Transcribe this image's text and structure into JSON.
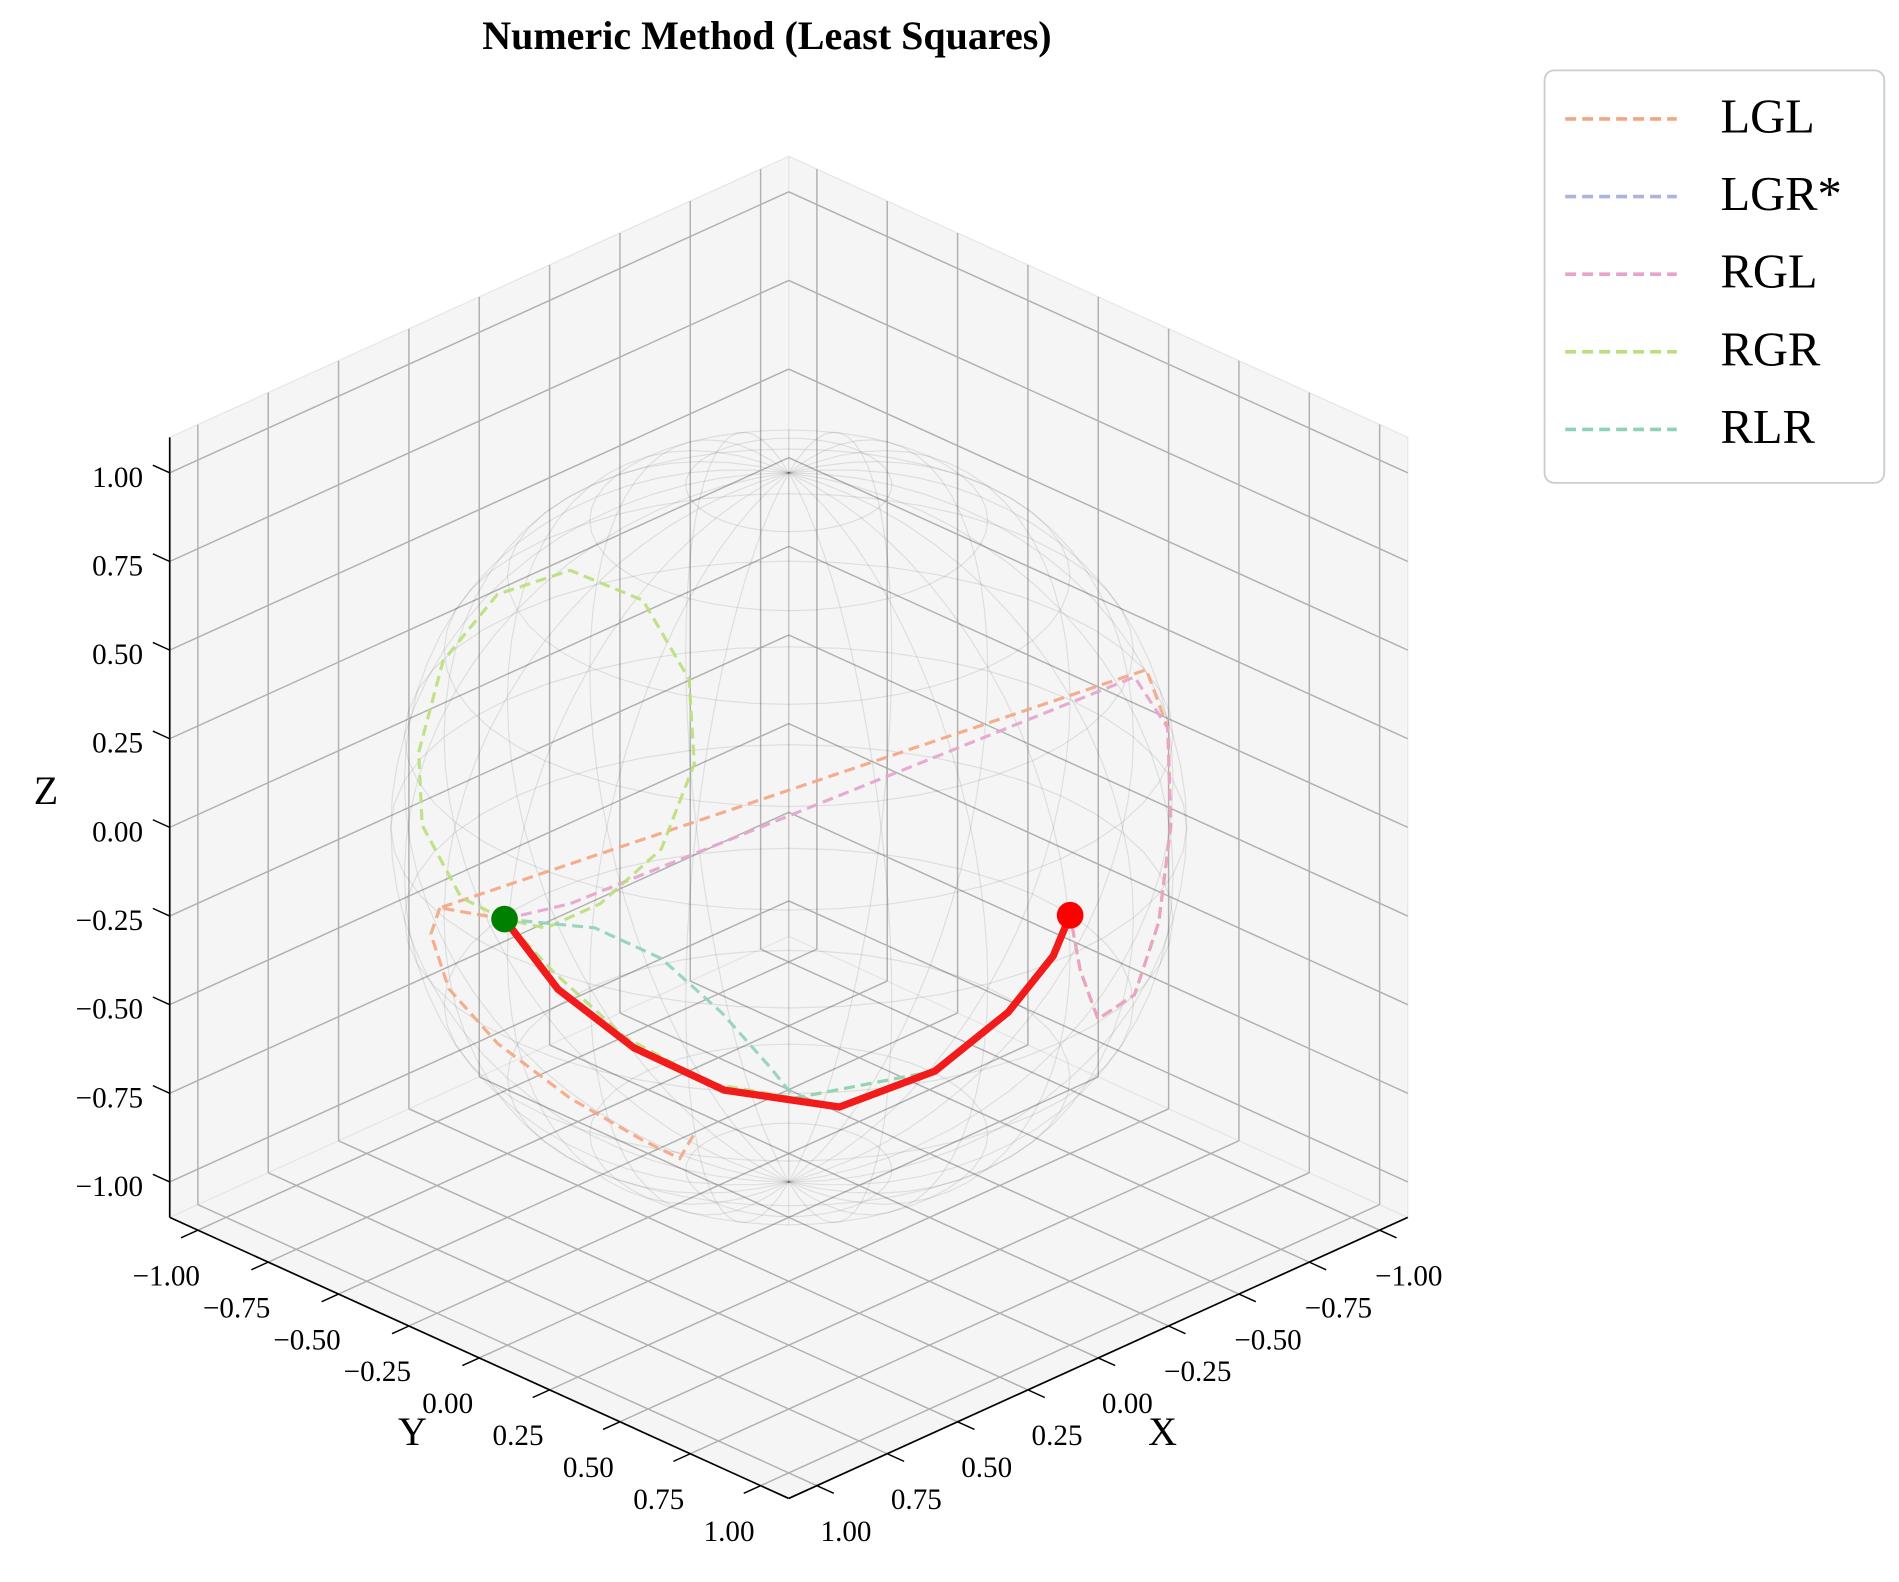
{
  "chart_data": {
    "type": "line3d",
    "title": "Numeric Method (Least Squares)",
    "xlabel": "X",
    "ylabel": "Y",
    "zlabel": "Z",
    "xlim": [
      -1.1,
      1.1
    ],
    "ylim": [
      -1.1,
      1.1
    ],
    "zlim": [
      -1.1,
      1.1
    ],
    "xticks": [
      {
        "value": -1,
        "label": "−1.00"
      },
      {
        "value": -0.75,
        "label": "−0.75"
      },
      {
        "value": -0.5,
        "label": "−0.50"
      },
      {
        "value": -0.25,
        "label": "−0.25"
      },
      {
        "value": 0,
        "label": "0.00"
      },
      {
        "value": 0.25,
        "label": "0.25"
      },
      {
        "value": 0.5,
        "label": "0.50"
      },
      {
        "value": 0.75,
        "label": "0.75"
      },
      {
        "value": 1,
        "label": "1.00"
      }
    ],
    "yticks": [
      {
        "value": -1,
        "label": "−1.00"
      },
      {
        "value": -0.75,
        "label": "−0.75"
      },
      {
        "value": -0.5,
        "label": "−0.50"
      },
      {
        "value": -0.25,
        "label": "−0.25"
      },
      {
        "value": 0,
        "label": "0.00"
      },
      {
        "value": 0.25,
        "label": "0.25"
      },
      {
        "value": 0.5,
        "label": "0.50"
      },
      {
        "value": 0.75,
        "label": "0.75"
      },
      {
        "value": 1,
        "label": "1.00"
      }
    ],
    "zticks": [
      {
        "value": -1,
        "label": "−1.00"
      },
      {
        "value": -0.75,
        "label": "−0.75"
      },
      {
        "value": -0.5,
        "label": "−0.50"
      },
      {
        "value": -0.25,
        "label": "−0.25"
      },
      {
        "value": 0,
        "label": "0.00"
      },
      {
        "value": 0.25,
        "label": "0.25"
      },
      {
        "value": 0.5,
        "label": "0.50"
      },
      {
        "value": 0.75,
        "label": "0.75"
      },
      {
        "value": 1,
        "label": "1.00"
      }
    ],
    "grid": true,
    "legend": "outside-upper-right",
    "sphere_radius": 1,
    "series": [
      {
        "name": "LGL",
        "color": "#f4a582",
        "x": [
          0.17,
          0.96,
          -0.881,
          -0.868,
          -0.857,
          -0.757,
          -0.644,
          -0.65,
          -0.767,
          -0.85,
          null,
          0.96,
          0.94,
          0.94,
          0.951,
          0.914,
          0.825,
          0.765,
          0.789
        ],
        "y": [
          -0.84,
          -0.28,
          0.39,
          0.479,
          0.501,
          0.558,
          0.585,
          0.449,
          0.269,
          0.15,
          null,
          -0.28,
          -0.332,
          -0.268,
          -0.084,
          0.137,
          0.307,
          0.378,
          0.452
        ],
        "z": [
          -0.5,
          0.018,
          0.268,
          0.14,
          -0.122,
          -0.339,
          -0.493,
          -0.613,
          -0.583,
          -0.5,
          null,
          0.018,
          -0.082,
          -0.213,
          -0.297,
          -0.385,
          -0.475,
          -0.522,
          -0.419
        ]
      },
      {
        "name": "LGR*",
        "color": "#a9b4e0",
        "x": [],
        "y": [],
        "z": []
      },
      {
        "name": "RGL",
        "color": "#e7a3cc",
        "x": [
          0.17,
          -0.062,
          -0.937,
          -0.868,
          -0.857,
          -0.757,
          -0.644,
          -0.65,
          -0.767,
          -0.85
        ],
        "y": [
          -0.84,
          -0.839,
          0.292,
          0.479,
          0.501,
          0.558,
          0.585,
          0.449,
          0.269,
          0.15
        ],
        "z": [
          -0.5,
          -0.54,
          0.192,
          0.14,
          -0.122,
          -0.339,
          -0.493,
          -0.613,
          -0.583,
          -0.5
        ]
      },
      {
        "name": "RGR",
        "color": "#bcde7c",
        "x": [
          0.17,
          0.298,
          0.404,
          0.398,
          0.313,
          0.11,
          -0.153,
          -0.388,
          -0.506,
          -0.487,
          -0.352,
          -0.146,
          0.04,
          0.17,
          0.083,
          -0.008,
          -0.12,
          -0.254,
          -0.5,
          -0.68,
          -0.8,
          -0.85
        ],
        "y": [
          -0.84,
          -0.866,
          -0.899,
          -0.917,
          -0.916,
          -0.926,
          -0.93,
          -0.906,
          -0.86,
          -0.823,
          -0.805,
          -0.815,
          -0.823,
          -0.84,
          -0.758,
          -0.591,
          -0.4,
          -0.233,
          0.02,
          0.1,
          0.14,
          0.15
        ],
        "z": [
          -0.5,
          -0.403,
          -0.172,
          0.025,
          0.252,
          0.363,
          0.335,
          0.174,
          -0.075,
          -0.293,
          -0.478,
          -0.561,
          -0.566,
          -0.5,
          -0.647,
          -0.807,
          -0.909,
          -0.939,
          -0.86,
          -0.73,
          -0.6,
          -0.5
        ]
      },
      {
        "name": "RLR",
        "color": "#8fd3b6",
        "x": [
          0.17,
          -0.1,
          -0.228,
          -0.279,
          -0.275,
          -0.254,
          -0.5,
          -0.68,
          -0.8,
          -0.85
        ],
        "y": [
          -0.84,
          -0.79,
          -0.681,
          -0.516,
          -0.34,
          -0.233,
          0.02,
          0.1,
          0.14,
          0.15
        ],
        "z": [
          -0.5,
          -0.604,
          -0.697,
          -0.81,
          -0.899,
          -0.939,
          -0.86,
          -0.73,
          -0.6,
          -0.5
        ]
      }
    ],
    "path": {
      "color": "#f21b1b",
      "x": [
        0.17,
        0.1,
        0.0,
        -0.12,
        -0.3,
        -0.5,
        -0.68,
        -0.8,
        -0.85
      ],
      "y": [
        -0.84,
        -0.72,
        -0.55,
        -0.35,
        -0.12,
        0.02,
        0.1,
        0.14,
        0.15
      ],
      "z": [
        -0.5,
        -0.68,
        -0.82,
        -0.91,
        -0.94,
        -0.86,
        -0.73,
        -0.6,
        -0.5
      ]
    },
    "start_point": {
      "color": "#008000",
      "x": 0.17,
      "y": -0.84,
      "z": -0.5
    },
    "end_point": {
      "color": "#ff0000",
      "x": -0.85,
      "y": 0.15,
      "z": -0.5
    }
  }
}
